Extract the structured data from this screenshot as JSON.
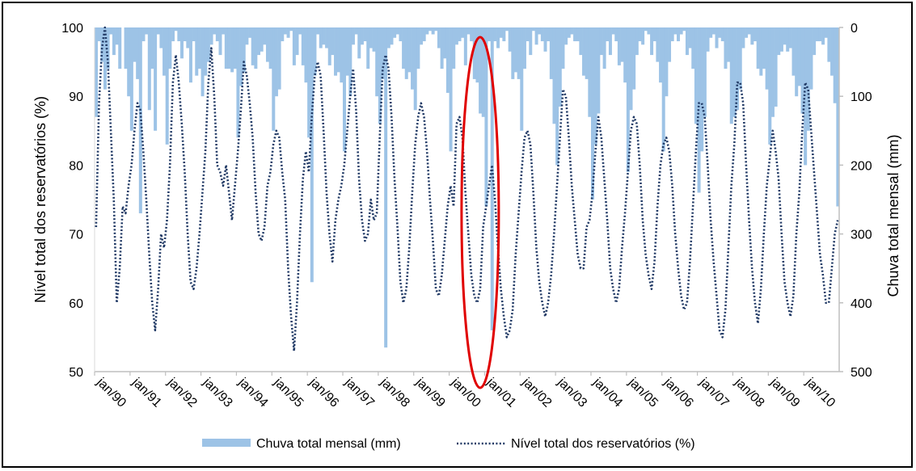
{
  "chart_data": {
    "type": "bar+line",
    "title": "",
    "x_tick_labels": [
      "jan/90",
      "jan/91",
      "jan/92",
      "jan/93",
      "jan/94",
      "jan/95",
      "jan/96",
      "jan/97",
      "jan/98",
      "jan/99",
      "jan/00",
      "jan/01",
      "jan/02",
      "jan/03",
      "jan/04",
      "jan/05",
      "jan/06",
      "jan/07",
      "jan/08",
      "jan/09",
      "jan/10"
    ],
    "x_start": "1990-01",
    "x_end": "2010-12",
    "y_left": {
      "label": "Nível total dos reservatórios (%)",
      "min": 50,
      "max": 100,
      "ticks": [
        50,
        60,
        70,
        80,
        90,
        100
      ]
    },
    "y_right": {
      "label": "Chuva total mensal (mm)",
      "min": 0,
      "max": 500,
      "inverted": true,
      "ticks": [
        0,
        100,
        200,
        300,
        400,
        500
      ]
    },
    "series": [
      {
        "name": "Chuva total mensal (mm)",
        "kind": "bar",
        "axis": "right",
        "color": "#9dc3e6",
        "values": [
          [
            1990,
            [
              130,
              20,
              50,
              90,
              60,
              10,
              40,
              25,
              60,
              0,
              60,
              100
            ]
          ],
          [
            1991,
            [
              150,
              50,
              75,
              270,
              20,
              10,
              120,
              60,
              150,
              10,
              30,
              70
            ]
          ],
          [
            1992,
            [
              170,
              60,
              20,
              5,
              20,
              45,
              20,
              30,
              80,
              20,
              70,
              60
            ]
          ],
          [
            1993,
            [
              100,
              70,
              50,
              25,
              10,
              20,
              40,
              10,
              60,
              60,
              65,
              60
            ]
          ],
          [
            1994,
            [
              160,
              85,
              65,
              25,
              15,
              55,
              60,
              40,
              35,
              25,
              50,
              60
            ]
          ],
          [
            1995,
            [
              150,
              100,
              90,
              20,
              10,
              15,
              5,
              55,
              40,
              10,
              55,
              80
            ]
          ],
          [
            1996,
            [
              160,
              370,
              70,
              10,
              30,
              25,
              30,
              55,
              40,
              70,
              65,
              80
            ]
          ],
          [
            1997,
            [
              180,
              70,
              100,
              25,
              10,
              45,
              25,
              20,
              60,
              30,
              35,
              100
            ]
          ],
          [
            1998,
            [
              140,
              75,
              465,
              30,
              25,
              15,
              10,
              20,
              60,
              75,
              65,
              90
            ]
          ],
          [
            1999,
            [
              120,
              60,
              25,
              20,
              10,
              5,
              10,
              5,
              30,
              60,
              45,
              95
            ]
          ],
          [
            2000,
            [
              180,
              60,
              25,
              20,
              15,
              55,
              10,
              20,
              75,
              80,
              125,
              130
            ]
          ],
          [
            2001,
            [
              260,
              20,
              440,
              20,
              30,
              15,
              20,
              5,
              35,
              75,
              65,
              75
            ]
          ],
          [
            2002,
            [
              150,
              60,
              20,
              40,
              5,
              25,
              10,
              20,
              35,
              20,
              75,
              140
            ]
          ],
          [
            2003,
            [
              200,
              115,
              60,
              25,
              15,
              10,
              20,
              20,
              40,
              70,
              75,
              130
            ]
          ],
          [
            2004,
            [
              250,
              170,
              125,
              40,
              60,
              20,
              40,
              10,
              20,
              55,
              50,
              80
            ]
          ],
          [
            2005,
            [
              210,
              120,
              90,
              40,
              20,
              25,
              5,
              10,
              40,
              20,
              50,
              80
            ]
          ],
          [
            2006,
            [
              180,
              100,
              50,
              20,
              10,
              20,
              10,
              5,
              40,
              30,
              60,
              140
            ]
          ],
          [
            2007,
            [
              240,
              180,
              130,
              35,
              15,
              10,
              30,
              15,
              20,
              60,
              50,
              140
            ]
          ],
          [
            2008,
            [
              130,
              120,
              90,
              30,
              15,
              10,
              25,
              20,
              60,
              70,
              60,
              90
            ]
          ],
          [
            2009,
            [
              170,
              130,
              115,
              40,
              35,
              25,
              35,
              30,
              70,
              100,
              85,
              125
            ]
          ],
          [
            2010,
            [
              200,
              150,
              90,
              40,
              20,
              20,
              25,
              15,
              50,
              70,
              110,
              260
            ]
          ]
        ]
      },
      {
        "name": "Nível total dos reservatórios (%)",
        "kind": "line",
        "axis": "left",
        "color": "#1f3864",
        "dash": "dotted",
        "values": [
          [
            1990,
            [
              71,
              89,
              97,
              100,
              95,
              85,
              75,
              60,
              65,
              74,
              73,
              77
            ]
          ],
          [
            1991,
            [
              80,
              85,
              89,
              88,
              82,
              75,
              67,
              60,
              56,
              62,
              70,
              68
            ]
          ],
          [
            1992,
            [
              72,
              80,
              92,
              96,
              92,
              86,
              79,
              70,
              63,
              62,
              65,
              70
            ]
          ],
          [
            1993,
            [
              76,
              82,
              92,
              97,
              90,
              80,
              79,
              77,
              80,
              76,
              72,
              77
            ]
          ],
          [
            1994,
            [
              82,
              88,
              95,
              93,
              89,
              84,
              76,
              70,
              69,
              71,
              77,
              79
            ]
          ],
          [
            1995,
            [
              83,
              85,
              84,
              79,
              75,
              65,
              58,
              53,
              60,
              70,
              78,
              82
            ]
          ],
          [
            1996,
            [
              79,
              87,
              93,
              95,
              93,
              85,
              76,
              70,
              66,
              72,
              75,
              77
            ]
          ],
          [
            1997,
            [
              80,
              85,
              90,
              94,
              88,
              78,
              72,
              69,
              70,
              75,
              72,
              73
            ]
          ],
          [
            1998,
            [
              84,
              94,
              96,
              94,
              87,
              78,
              71,
              63,
              60,
              62,
              68,
              76
            ]
          ],
          [
            1999,
            [
              83,
              87,
              89,
              87,
              82,
              75,
              69,
              62,
              61,
              64,
              69,
              74
            ]
          ],
          [
            2000,
            [
              77,
              74,
              86,
              87,
              84,
              76,
              70,
              64,
              61,
              60,
              62,
              71
            ]
          ],
          [
            2001,
            [
              74,
              77,
              80,
              75,
              68,
              62,
              58,
              55,
              56,
              59,
              67,
              73
            ]
          ],
          [
            2002,
            [
              79,
              84,
              85,
              83,
              76,
              68,
              63,
              60,
              58,
              60,
              64,
              70
            ]
          ],
          [
            2003,
            [
              77,
              84,
              91,
              90,
              84,
              77,
              72,
              67,
              65,
              65,
              71,
              72
            ]
          ],
          [
            2004,
            [
              76,
              82,
              87,
              84,
              78,
              72,
              65,
              62,
              60,
              62,
              68,
              73
            ]
          ],
          [
            2005,
            [
              79,
              85,
              87,
              86,
              80,
              72,
              67,
              64,
              62,
              66,
              74,
              80
            ]
          ],
          [
            2006,
            [
              83,
              84,
              82,
              77,
              70,
              65,
              61,
              59,
              60,
              66,
              74,
              82
            ]
          ],
          [
            2007,
            [
              89,
              89,
              87,
              80,
              72,
              66,
              61,
              56,
              55,
              59,
              68,
              77
            ]
          ],
          [
            2008,
            [
              83,
              92,
              92,
              89,
              80,
              72,
              65,
              60,
              57,
              62,
              70,
              77
            ]
          ],
          [
            2009,
            [
              81,
              85,
              82,
              78,
              70,
              63,
              60,
              58,
              61,
              70,
              76,
              85
            ]
          ],
          [
            2010,
            [
              92,
              91,
              85,
              79,
              73,
              67,
              64,
              60,
              60,
              65,
              70,
              72
            ]
          ]
        ]
      }
    ],
    "legend": {
      "position": "bottom",
      "entries": [
        {
          "label": "Chuva total mensal (mm)",
          "symbol": "bar",
          "color": "#9dc3e6"
        },
        {
          "label": "Nível total dos reservatórios (%)",
          "symbol": "dotted-line",
          "color": "#1f3864"
        }
      ]
    },
    "annotations": [
      {
        "type": "ellipse",
        "color": "#e00000",
        "around": "2000-11"
      }
    ]
  }
}
